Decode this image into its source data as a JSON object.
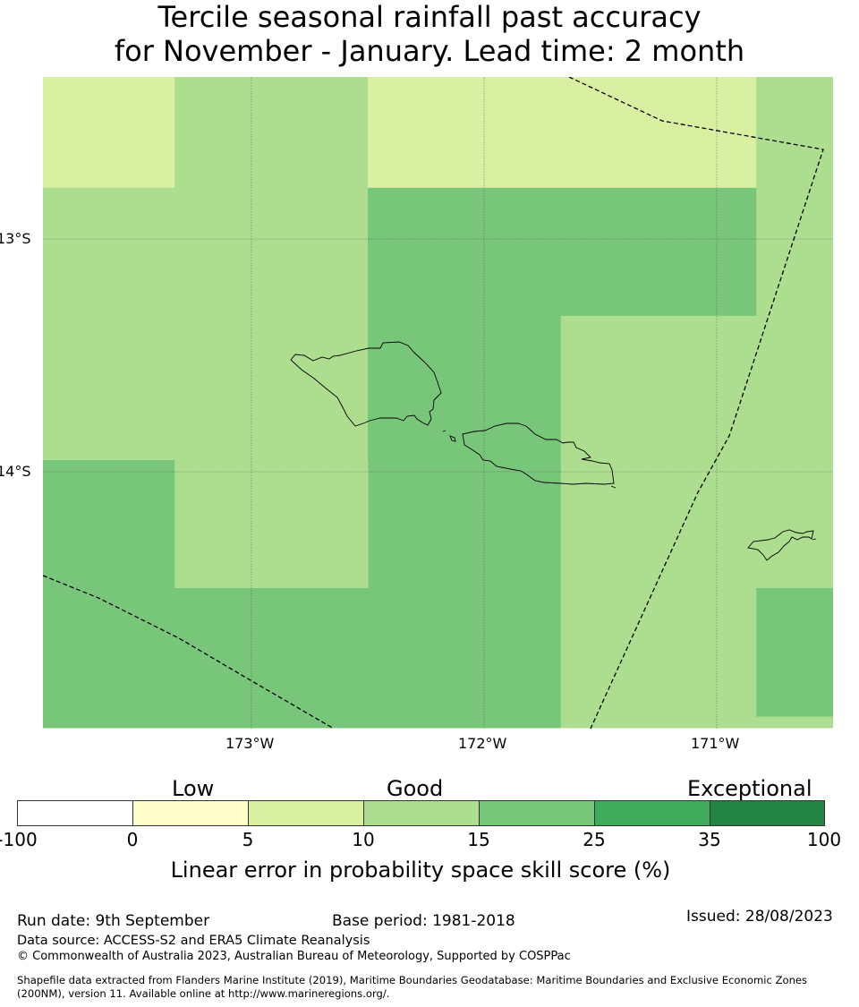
{
  "title": {
    "line1": "Tercile seasonal rainfall past accuracy",
    "line2": "for November - January. Lead time: 2 month"
  },
  "map": {
    "lat_labels": [
      "13°S",
      "14°S"
    ],
    "lon_labels": [
      "173°W",
      "172°W",
      "171°W"
    ],
    "extent": {
      "lon": [
        -173.9,
        -170.5
      ],
      "lat": [
        -12.3,
        -15.1
      ]
    },
    "grid": true,
    "skill_cells": [
      {
        "lon": [
          -173.9,
          -173.33
        ],
        "lat": [
          -12.3,
          -12.78
        ],
        "class": "5-10"
      },
      {
        "lon": [
          -173.33,
          -172.5
        ],
        "lat": [
          -12.3,
          -12.78
        ],
        "class": "10-15"
      },
      {
        "lon": [
          -172.5,
          -170.83
        ],
        "lat": [
          -12.3,
          -12.78
        ],
        "class": "5-10"
      },
      {
        "lon": [
          -170.83,
          -170.5
        ],
        "lat": [
          -12.3,
          -12.78
        ],
        "class": "10-15"
      },
      {
        "lon": [
          -173.9,
          -172.5
        ],
        "lat": [
          -12.78,
          -13.95
        ],
        "class": "10-15"
      },
      {
        "lon": [
          -172.5,
          -170.83
        ],
        "lat": [
          -12.78,
          -13.33
        ],
        "class": "15-25"
      },
      {
        "lon": [
          -170.83,
          -170.5
        ],
        "lat": [
          -12.78,
          -13.33
        ],
        "class": "10-15"
      },
      {
        "lon": [
          -172.5,
          -171.67
        ],
        "lat": [
          -13.33,
          -15.1
        ],
        "class": "15-25"
      },
      {
        "lon": [
          -171.67,
          -170.5
        ],
        "lat": [
          -13.33,
          -15.1
        ],
        "class": "10-15"
      },
      {
        "lon": [
          -173.9,
          -173.33
        ],
        "lat": [
          -13.95,
          -15.1
        ],
        "class": "15-25"
      },
      {
        "lon": [
          -173.33,
          -172.5
        ],
        "lat": [
          -13.95,
          -14.5
        ],
        "class": "10-15"
      },
      {
        "lon": [
          -173.33,
          -172.5
        ],
        "lat": [
          -14.5,
          -15.1
        ],
        "class": "15-25"
      },
      {
        "lon": [
          -170.83,
          -170.5
        ],
        "lat": [
          -14.5,
          -15.05
        ],
        "class": "15-25"
      }
    ]
  },
  "colorbar": {
    "categories": [
      "Low",
      "Good",
      "Exceptional"
    ],
    "ticks": [
      "-100",
      "0",
      "5",
      "10",
      "15",
      "25",
      "35",
      "100"
    ],
    "colors": [
      "#ffffff",
      "#ffffcc",
      "#d9f0a3",
      "#addd8e",
      "#78c679",
      "#41ab5d",
      "#238443"
    ],
    "label": "Linear error in probability space skill score (%)"
  },
  "footer": {
    "run_date": "Run date: 9th September",
    "base_period": "Base period: 1981-2018",
    "issued": "Issued: 28/08/2023",
    "data_source": "Data source: ACCESS-S2 and ERA5 Climate Reanalysis",
    "copyright": "© Commonwealth of Australia 2023, Australian Bureau of Meteorology, Supported by COSPPac",
    "shapefile_line1": "Shapefile data extracted from Flanders Marine Institute (2019), Maritime Boundaries Geodatabase: Maritime Boundaries and Exclusive Economic Zones",
    "shapefile_line2": "(200NM), version 11. Available online at http://www.marineregions.org/."
  }
}
